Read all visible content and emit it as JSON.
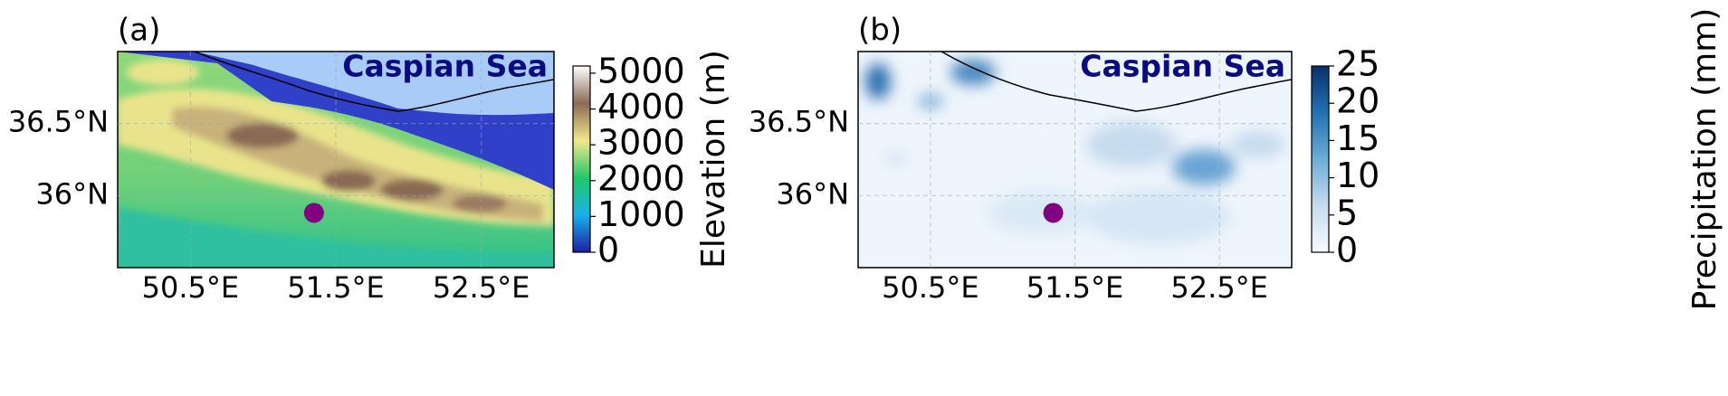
{
  "panels": [
    {
      "label": "(a)",
      "sea_label": "Caspian Sea",
      "lon_range": [
        50,
        53
      ],
      "lat_range": [
        35.5,
        37
      ],
      "lat_ticks": [
        {
          "value": 36.5,
          "label": "36.5°N"
        },
        {
          "value": 36,
          "label": "36°N"
        }
      ],
      "lon_ticks": [
        {
          "value": 50.5,
          "label": "50.5°E"
        },
        {
          "value": 51.5,
          "label": "51.5°E"
        },
        {
          "value": 52.5,
          "label": "52.5°E"
        }
      ],
      "marker": {
        "lon": 51.35,
        "lat": 35.88,
        "color": "#800080"
      },
      "colorbar": {
        "title": "Elevation (m)",
        "range": [
          0,
          5200
        ],
        "ticks": [
          0,
          1000,
          2000,
          3000,
          4000,
          5000
        ],
        "colors": [
          "#1f1fa8",
          "#1ab0e8",
          "#22c86a",
          "#f2e88a",
          "#8a6a54",
          "#ffffff"
        ]
      }
    },
    {
      "label": "(b)",
      "sea_label": "Caspian Sea",
      "lon_range": [
        50,
        53
      ],
      "lat_range": [
        35.5,
        37
      ],
      "lat_ticks": [
        {
          "value": 36.5,
          "label": "36.5°N"
        },
        {
          "value": 36,
          "label": "36°N"
        }
      ],
      "lon_ticks": [
        {
          "value": 50.5,
          "label": "50.5°E"
        },
        {
          "value": 51.5,
          "label": "51.5°E"
        },
        {
          "value": 52.5,
          "label": "52.5°E"
        }
      ],
      "marker": {
        "lon": 51.35,
        "lat": 35.88,
        "color": "#800080"
      },
      "colorbar": {
        "title": "Precipitation (mm)",
        "range": [
          0,
          25
        ],
        "ticks": [
          0,
          5,
          10,
          15,
          20,
          25
        ],
        "colors": [
          "#f7fbff",
          "#c6dbef",
          "#6baed6",
          "#2171b5",
          "#08306b"
        ]
      }
    }
  ]
}
